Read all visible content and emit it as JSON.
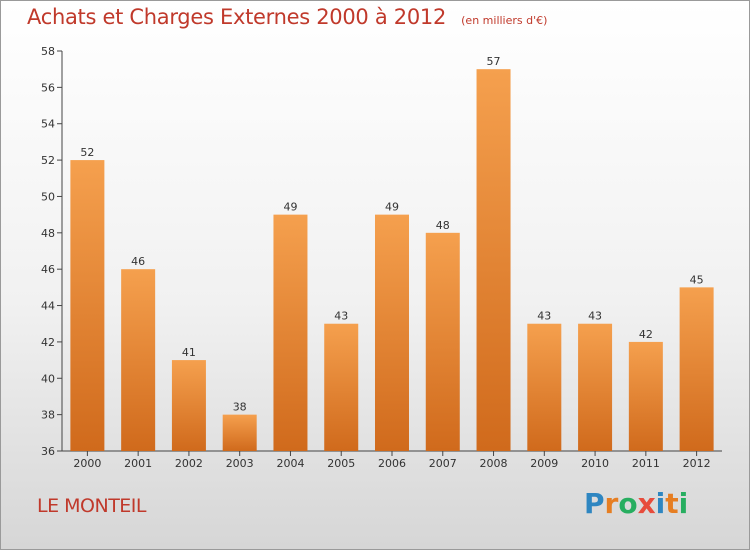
{
  "chart_data": {
    "type": "bar",
    "title": "Achats et Charges Externes 2000 à 2012",
    "subtitle": "(en milliers d'€)",
    "categories": [
      "2000",
      "2001",
      "2002",
      "2003",
      "2004",
      "2005",
      "2006",
      "2007",
      "2008",
      "2009",
      "2010",
      "2011",
      "2012"
    ],
    "values": [
      52,
      46,
      41,
      38,
      49,
      43,
      49,
      48,
      57,
      43,
      43,
      42,
      45
    ],
    "ylim": [
      36,
      58
    ],
    "yticks": [
      36,
      38,
      40,
      42,
      44,
      46,
      48,
      50,
      52,
      54,
      56,
      58
    ],
    "grid": false,
    "bar_color_top": "#f5a04e",
    "bar_color_bottom": "#d06a1c"
  },
  "commune": "LE MONTEIL",
  "logo": {
    "text": "Proxiti",
    "letters": [
      {
        "ch": "P",
        "color": "#2e86c1"
      },
      {
        "ch": "r",
        "color": "#e67e22"
      },
      {
        "ch": "o",
        "color": "#27ae60"
      },
      {
        "ch": "x",
        "color": "#e74c3c"
      },
      {
        "ch": "i",
        "color": "#2e86c1"
      },
      {
        "ch": "t",
        "color": "#e67e22"
      },
      {
        "ch": "i",
        "color": "#27ae60"
      }
    ]
  }
}
